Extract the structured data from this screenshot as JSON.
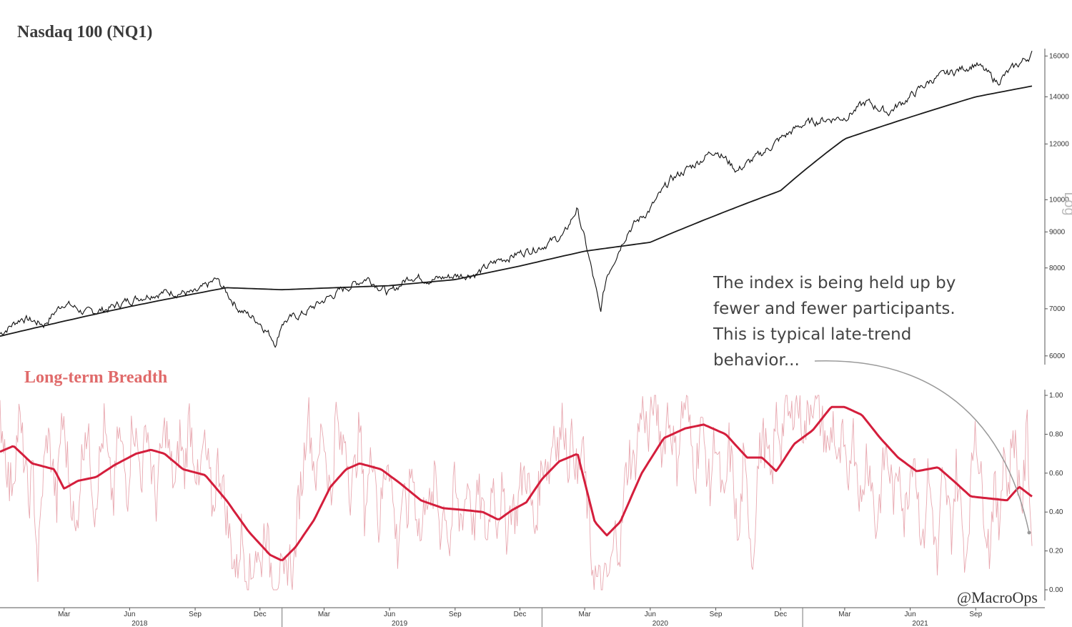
{
  "colors": {
    "price": "#111111",
    "moving_average": "#1a1a1a",
    "breadth_raw": "#e8a8b0",
    "breadth_smooth": "#d41e3c",
    "breadth_title": "#e06a6a",
    "arrow": "#999999"
  },
  "annotation": {
    "lines": [
      "The index is being held up by",
      "fewer and fewer participants.",
      "This is typical late-trend",
      "behavior..."
    ]
  },
  "watermark": "@MacroOps",
  "chart_data": [
    {
      "type": "line",
      "title": "Nasdaq 100 (NQ1)",
      "scale": "log",
      "axis_label": "Log",
      "y_ticks": [
        6000,
        7000,
        8000,
        9000,
        10000,
        12000,
        14000,
        16000
      ],
      "x_range": [
        "2017-12",
        "2021-11"
      ],
      "series": [
        {
          "kind": "price",
          "x": [
            "2017-12-01",
            "2018-01-01",
            "2018-02-01",
            "2018-03-01",
            "2018-04-01",
            "2018-05-01",
            "2018-06-01",
            "2018-07-01",
            "2018-08-01",
            "2018-09-01",
            "2018-10-01",
            "2018-11-01",
            "2018-12-01",
            "2018-12-24",
            "2019-01-01",
            "2019-02-01",
            "2019-03-01",
            "2019-04-01",
            "2019-05-01",
            "2019-06-01",
            "2019-07-01",
            "2019-08-01",
            "2019-09-01",
            "2019-10-01",
            "2019-11-01",
            "2019-12-01",
            "2020-01-01",
            "2020-02-01",
            "2020-02-19",
            "2020-03-23",
            "2020-04-01",
            "2020-05-01",
            "2020-06-01",
            "2020-07-01",
            "2020-08-01",
            "2020-09-01",
            "2020-10-01",
            "2020-11-01",
            "2020-12-01",
            "2021-01-01",
            "2021-02-01",
            "2021-03-01",
            "2021-04-01",
            "2021-05-01",
            "2021-06-01",
            "2021-07-01",
            "2021-08-01",
            "2021-09-01",
            "2021-10-01",
            "2021-11-01",
            "2021-11-19"
          ],
          "y": [
            6450,
            6800,
            6650,
            7150,
            6900,
            7000,
            7200,
            7350,
            7400,
            7350,
            7700,
            7000,
            6700,
            6250,
            6700,
            6900,
            7200,
            7500,
            7750,
            7350,
            7800,
            7700,
            7800,
            7850,
            8200,
            8400,
            8600,
            8900,
            9700,
            6900,
            7800,
            9050,
            9700,
            10700,
            11200,
            11800,
            11000,
            11550,
            12200,
            12800,
            13000,
            13100,
            13750,
            13300,
            14000,
            14800,
            15200,
            15600,
            14700,
            15600,
            16100
          ]
        },
        {
          "kind": "moving-average",
          "x": [
            "2017-12-01",
            "2018-06-01",
            "2018-10-15",
            "2019-01-01",
            "2019-06-01",
            "2019-09-01",
            "2019-12-01",
            "2020-03-01",
            "2020-06-01",
            "2020-09-01",
            "2020-12-01",
            "2021-03-01",
            "2021-06-01",
            "2021-09-01",
            "2021-11-19"
          ],
          "y": [
            6400,
            7050,
            7500,
            7450,
            7550,
            7700,
            8050,
            8450,
            8700,
            9500,
            10300,
            12200,
            13100,
            14000,
            14500
          ]
        }
      ]
    },
    {
      "type": "line",
      "title": "Long-term Breadth",
      "y_ticks": [
        "0.00",
        "0.20",
        "0.40",
        "0.60",
        "0.80",
        "1.00"
      ],
      "ylim": [
        0,
        1
      ],
      "x_ticks": [
        {
          "date": "2018-03-01",
          "label": "Mar"
        },
        {
          "date": "2018-06-01",
          "label": "Jun"
        },
        {
          "date": "2018-09-01",
          "label": "Sep"
        },
        {
          "date": "2018-12-01",
          "label": "Dec"
        },
        {
          "date": "2019-03-01",
          "label": "Mar"
        },
        {
          "date": "2019-06-01",
          "label": "Jun"
        },
        {
          "date": "2019-09-01",
          "label": "Sep"
        },
        {
          "date": "2019-12-01",
          "label": "Dec"
        },
        {
          "date": "2020-03-01",
          "label": "Mar"
        },
        {
          "date": "2020-06-01",
          "label": "Jun"
        },
        {
          "date": "2020-09-01",
          "label": "Sep"
        },
        {
          "date": "2020-12-01",
          "label": "Dec"
        },
        {
          "date": "2021-03-01",
          "label": "Mar"
        },
        {
          "date": "2021-06-01",
          "label": "Jun"
        },
        {
          "date": "2021-09-01",
          "label": "Sep"
        }
      ],
      "x_year_ticks": [
        {
          "date": "2018-06-15",
          "label": "2018"
        },
        {
          "date": "2019-06-15",
          "label": "2019"
        },
        {
          "date": "2020-06-15",
          "label": "2020"
        },
        {
          "date": "2021-06-15",
          "label": "2021"
        }
      ],
      "series": [
        {
          "kind": "smoothed",
          "x": [
            "2017-12-01",
            "2017-12-20",
            "2018-01-15",
            "2018-02-15",
            "2018-03-01",
            "2018-03-20",
            "2018-04-15",
            "2018-05-10",
            "2018-06-10",
            "2018-07-01",
            "2018-07-20",
            "2018-08-15",
            "2018-09-15",
            "2018-10-15",
            "2018-11-15",
            "2018-12-15",
            "2019-01-01",
            "2019-01-20",
            "2019-02-15",
            "2019-03-10",
            "2019-04-01",
            "2019-04-20",
            "2019-05-20",
            "2019-06-15",
            "2019-07-15",
            "2019-08-15",
            "2019-09-15",
            "2019-10-10",
            "2019-11-01",
            "2019-11-20",
            "2019-12-10",
            "2020-01-01",
            "2020-01-25",
            "2020-02-20",
            "2020-03-15",
            "2020-04-01",
            "2020-04-20",
            "2020-05-20",
            "2020-06-20",
            "2020-07-20",
            "2020-08-15",
            "2020-09-15",
            "2020-10-15",
            "2020-11-05",
            "2020-11-25",
            "2020-12-20",
            "2021-01-15",
            "2021-02-10",
            "2021-03-01",
            "2021-03-25",
            "2021-04-20",
            "2021-05-15",
            "2021-06-10",
            "2021-07-10",
            "2021-08-01",
            "2021-08-25",
            "2021-09-20",
            "2021-10-15",
            "2021-11-01",
            "2021-11-19"
          ],
          "y": [
            0.71,
            0.74,
            0.65,
            0.62,
            0.52,
            0.56,
            0.58,
            0.64,
            0.7,
            0.72,
            0.7,
            0.62,
            0.59,
            0.46,
            0.3,
            0.18,
            0.15,
            0.22,
            0.36,
            0.53,
            0.62,
            0.65,
            0.62,
            0.55,
            0.46,
            0.42,
            0.41,
            0.4,
            0.36,
            0.41,
            0.45,
            0.57,
            0.66,
            0.7,
            0.35,
            0.28,
            0.35,
            0.6,
            0.78,
            0.83,
            0.85,
            0.8,
            0.68,
            0.68,
            0.61,
            0.75,
            0.82,
            0.94,
            0.94,
            0.9,
            0.78,
            0.68,
            0.61,
            0.63,
            0.56,
            0.48,
            0.47,
            0.46,
            0.53,
            0.48
          ]
        },
        {
          "kind": "raw",
          "x_range": [
            "2017-12-01",
            "2021-11-19"
          ],
          "y": [
            0.9,
            0.75,
            0.52,
            0.62,
            0.88,
            0.7,
            0.45,
            0.6,
            0.1,
            0.55,
            0.8,
            0.66,
            0.42,
            0.9,
            0.72,
            0.5,
            0.25,
            0.6,
            0.85,
            0.7,
            0.4,
            0.65,
            0.85,
            0.6,
            0.45,
            0.82,
            0.68,
            0.5,
            0.9,
            0.72,
            0.58,
            0.88,
            0.62,
            0.45,
            0.7,
            0.85,
            0.65,
            0.52,
            0.8,
            0.6,
            0.9,
            0.7,
            0.5,
            0.75,
            0.62,
            0.4,
            0.65,
            0.55,
            0.35,
            0.2,
            0.08,
            0.3,
            0.12,
            0.05,
            0.22,
            0.1,
            0.35,
            0.15,
            0.04,
            0.1,
            0.02,
            0.18,
            0.08,
            0.45,
            0.6,
            0.95,
            0.7,
            0.55,
            0.88,
            0.65,
            0.45,
            0.92,
            0.7,
            0.8,
            0.5,
            0.62,
            0.85,
            0.4,
            0.6,
            0.75,
            0.3,
            0.55,
            0.72,
            0.45,
            0.2,
            0.5,
            0.35,
            0.65,
            0.4,
            0.25,
            0.55,
            0.38,
            0.6,
            0.3,
            0.45,
            0.2,
            0.55,
            0.35,
            0.42,
            0.58,
            0.3,
            0.5,
            0.4,
            0.25,
            0.6,
            0.35,
            0.5,
            0.3,
            0.45,
            0.38,
            0.55,
            0.62,
            0.48,
            0.3,
            0.55,
            0.7,
            0.6,
            0.85,
            0.72,
            0.9,
            0.65,
            0.8,
            0.55,
            0.75,
            0.45,
            0.15,
            0.05,
            0.02,
            0.04,
            0.1,
            0.3,
            0.2,
            0.55,
            0.7,
            0.62,
            0.85,
            0.95,
            0.75,
            1.0,
            0.88,
            0.7,
            0.92,
            0.8,
            0.65,
            0.9,
            0.98,
            0.75,
            0.6,
            0.88,
            0.7,
            0.5,
            0.82,
            0.6,
            0.4,
            0.75,
            0.55,
            0.2,
            0.65,
            0.45,
            0.12,
            0.6,
            0.8,
            0.7,
            0.55,
            0.9,
            0.75,
            0.98,
            0.85,
            1.0,
            0.92,
            0.8,
            0.95,
            1.0,
            0.9,
            0.82,
            0.7,
            0.88,
            0.6,
            0.78,
            0.5,
            0.85,
            0.65,
            0.4,
            0.7,
            0.6,
            0.3,
            0.5,
            0.72,
            0.6,
            0.45,
            0.68,
            0.35,
            0.55,
            0.75,
            0.45,
            0.2,
            0.6,
            0.4,
            0.1,
            0.55,
            0.48,
            0.3,
            0.62,
            0.4,
            0.15,
            0.5,
            0.88,
            0.6,
            0.4,
            0.2,
            0.55,
            0.3,
            0.75,
            0.5,
            0.85,
            0.6,
            0.45,
            0.84,
            0.2
          ]
        }
      ]
    }
  ]
}
